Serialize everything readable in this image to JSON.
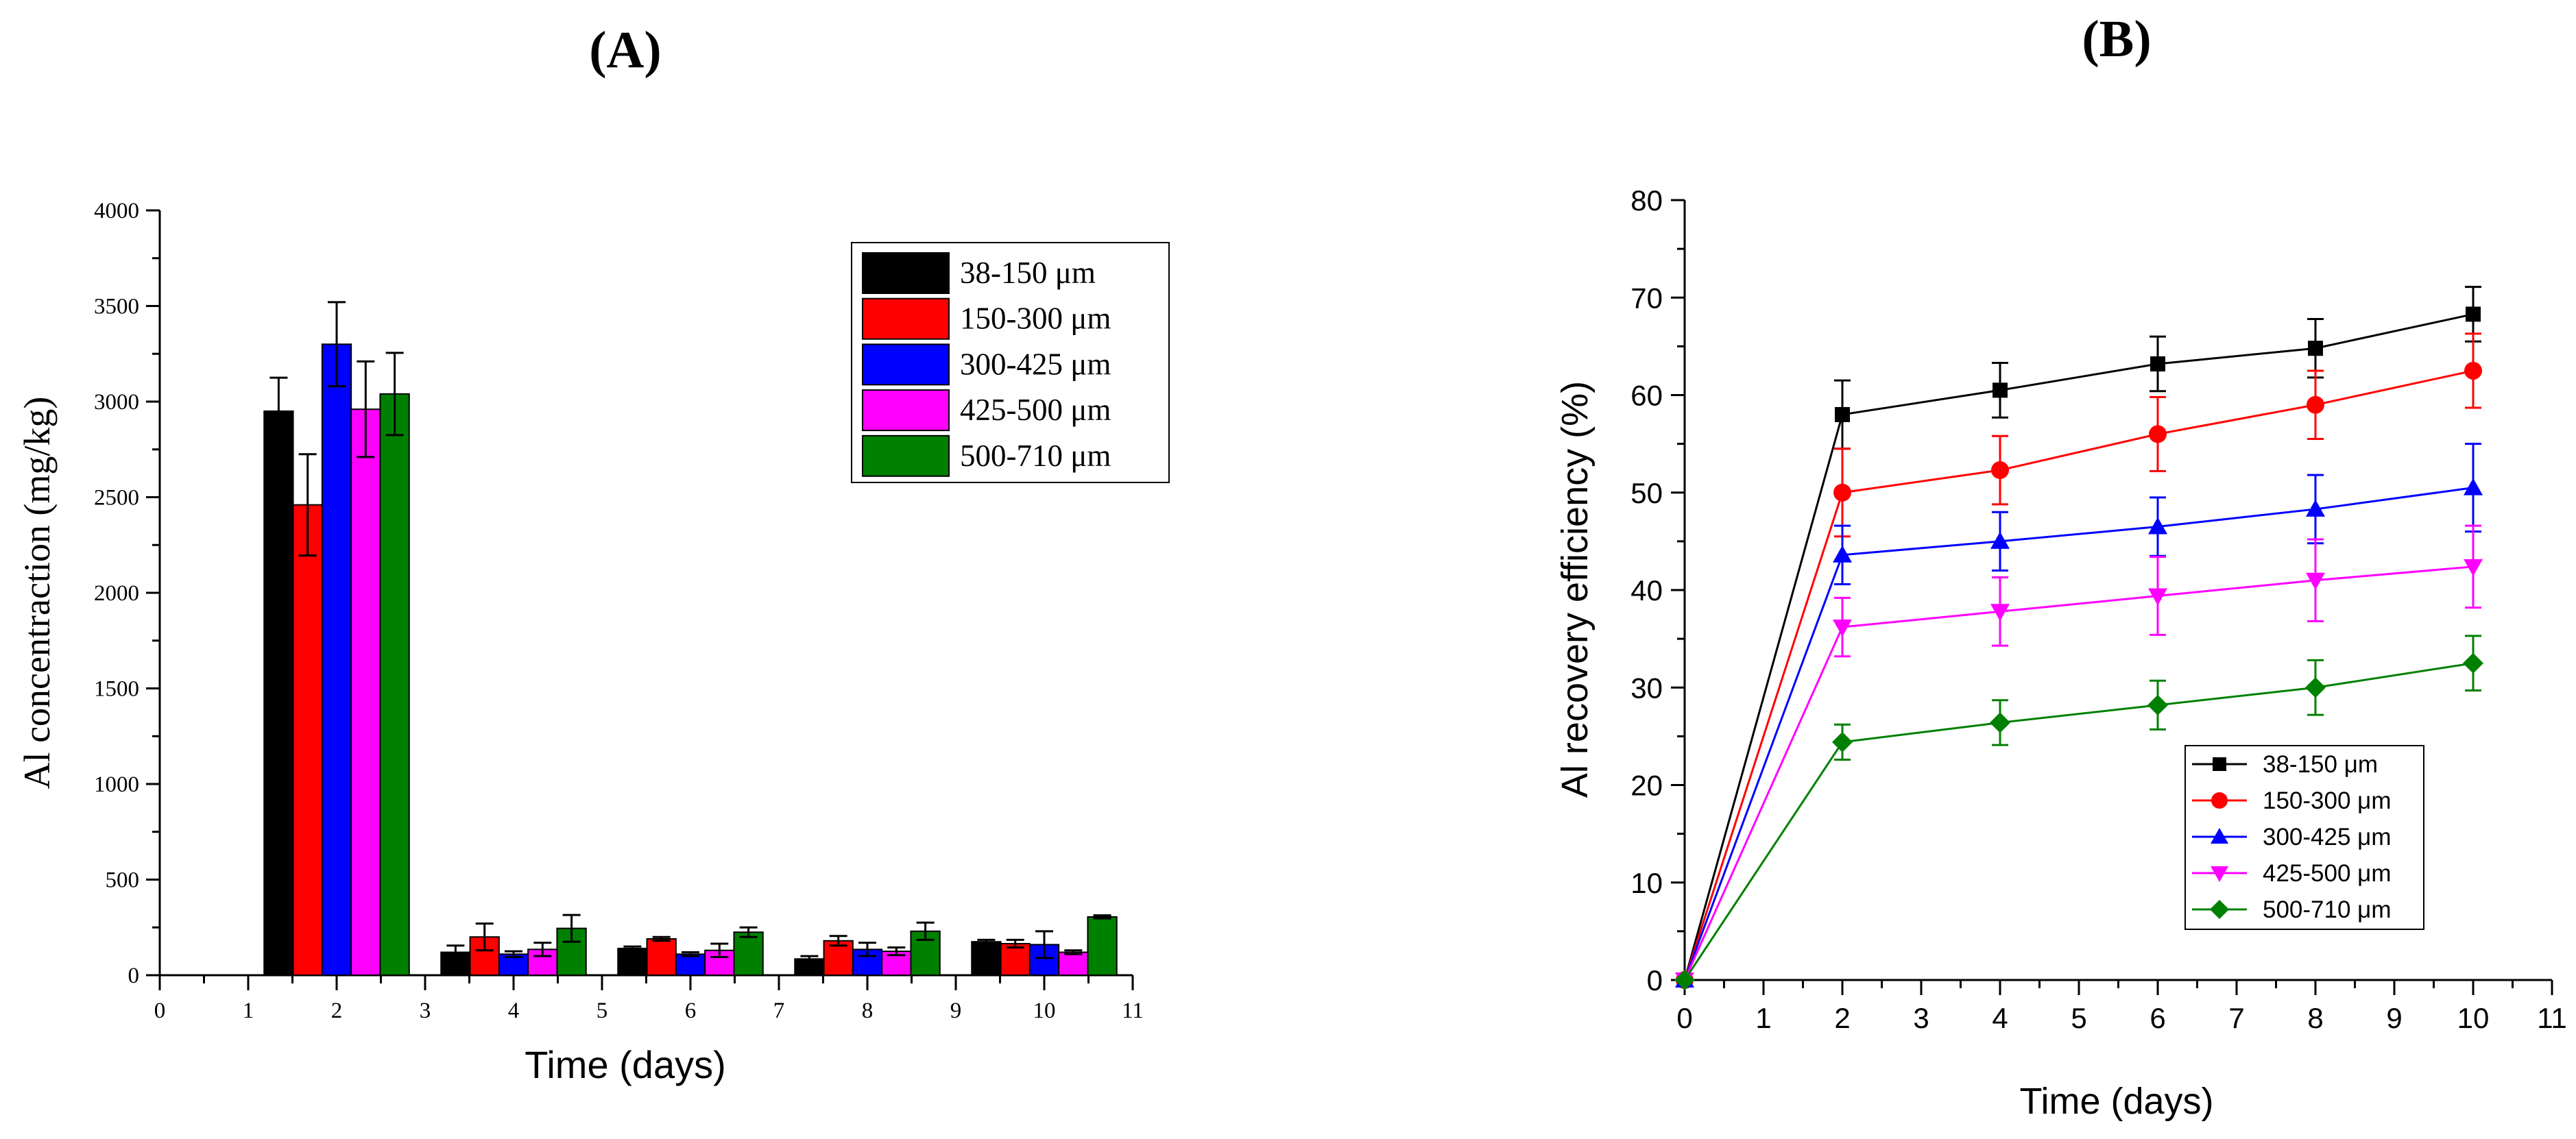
{
  "panels": {
    "a_label": "(A)",
    "b_label": "(B)"
  },
  "chart_data": [
    {
      "panel": "A",
      "type": "bar",
      "title": "",
      "xlabel": "Time (days)",
      "ylabel": "Al concentraction (mg/kg)",
      "xlim": [
        0,
        11
      ],
      "ylim": [
        0,
        4000
      ],
      "xticks": [
        "0",
        "1",
        "2",
        "3",
        "4",
        "5",
        "6",
        "7",
        "8",
        "9",
        "10",
        "11"
      ],
      "yticks": [
        "0",
        "500",
        "1000",
        "1500",
        "2000",
        "2500",
        "3000",
        "3500",
        "4000"
      ],
      "categories": [
        2,
        4,
        6,
        8,
        10
      ],
      "legend_position": "top-right",
      "series": [
        {
          "name": "38-150 μm",
          "color": "#000000",
          "values": [
            2950,
            120,
            140,
            85,
            175
          ],
          "errors": [
            175,
            35,
            10,
            15,
            10
          ]
        },
        {
          "name": "150-300 μm",
          "color": "#ff0000",
          "values": [
            2460,
            200,
            190,
            180,
            165
          ],
          "errors": [
            265,
            70,
            10,
            25,
            20
          ]
        },
        {
          "name": "300-425 μm",
          "color": "#0000ff",
          "values": [
            3300,
            110,
            110,
            135,
            160
          ],
          "errors": [
            220,
            15,
            10,
            35,
            70
          ]
        },
        {
          "name": "425-500 μm",
          "color": "#ff00ff",
          "values": [
            2960,
            135,
            130,
            125,
            120
          ],
          "errors": [
            250,
            35,
            35,
            20,
            10
          ]
        },
        {
          "name": "500-710 μm",
          "color": "#008000",
          "values": [
            3040,
            245,
            225,
            230,
            305
          ],
          "errors": [
            215,
            70,
            25,
            45,
            8
          ]
        }
      ]
    },
    {
      "panel": "B",
      "type": "line",
      "title": "",
      "xlabel": "Time (days)",
      "ylabel": "Al recovery efficiency (%)",
      "xlim": [
        0,
        11
      ],
      "ylim": [
        0,
        80
      ],
      "xticks": [
        "0",
        "1",
        "2",
        "3",
        "4",
        "5",
        "6",
        "7",
        "8",
        "9",
        "10",
        "11"
      ],
      "yticks": [
        "0",
        "10",
        "20",
        "30",
        "40",
        "50",
        "60",
        "70",
        "80"
      ],
      "x": [
        0,
        2,
        4,
        6,
        8,
        10
      ],
      "legend_position": "bottom-right",
      "series": [
        {
          "name": "38-150 μm",
          "color": "#000000",
          "marker": "square",
          "values": [
            0,
            58,
            60.5,
            63.2,
            64.8,
            68.3
          ],
          "errors": [
            0,
            3.5,
            2.8,
            2.8,
            3.0,
            2.8
          ]
        },
        {
          "name": "150-300 μm",
          "color": "#ff0000",
          "marker": "circle",
          "values": [
            0,
            50,
            52.3,
            56,
            59,
            62.5
          ],
          "errors": [
            0,
            4.5,
            3.5,
            3.8,
            3.5,
            3.8
          ]
        },
        {
          "name": "300-425  μm",
          "color": "#0000ff",
          "marker": "triangle-up",
          "values": [
            0,
            43.6,
            45,
            46.5,
            48.3,
            50.5
          ],
          "errors": [
            0,
            3.0,
            3.0,
            3.0,
            3.5,
            4.5
          ]
        },
        {
          "name": "425-500  μm",
          "color": "#ff00ff",
          "marker": "triangle-down",
          "values": [
            0,
            36.2,
            37.8,
            39.4,
            41,
            42.4
          ],
          "errors": [
            0,
            3.0,
            3.5,
            4.0,
            4.2,
            4.2
          ]
        },
        {
          "name": "500-710  μm",
          "color": "#008000",
          "marker": "diamond",
          "values": [
            0,
            24.4,
            26.4,
            28.2,
            30,
            32.5
          ],
          "errors": [
            0,
            1.8,
            2.3,
            2.5,
            2.8,
            2.8
          ]
        }
      ]
    }
  ]
}
